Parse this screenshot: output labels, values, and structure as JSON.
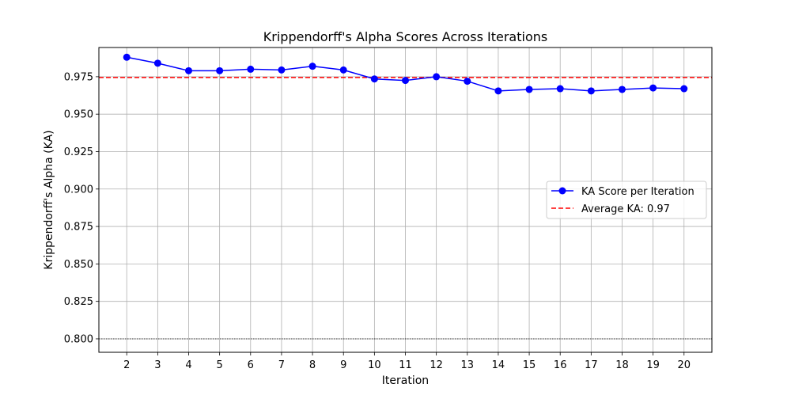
{
  "chart_data": {
    "type": "line",
    "title": "Krippendorff's Alpha Scores Across Iterations",
    "xlabel": "Iteration",
    "ylabel": "Krippendorff's Alpha (KA)",
    "xlim": [
      1.1,
      20.9
    ],
    "ylim": [
      0.791,
      0.9945
    ],
    "x": [
      2,
      3,
      4,
      5,
      6,
      7,
      8,
      9,
      10,
      11,
      12,
      13,
      14,
      15,
      16,
      17,
      18,
      19,
      20
    ],
    "series": [
      {
        "name": "KA Score per Iteration",
        "color": "#0000ff",
        "marker": "circle",
        "values": [
          0.988,
          0.984,
          0.979,
          0.979,
          0.98,
          0.9795,
          0.982,
          0.9795,
          0.9735,
          0.9725,
          0.975,
          0.972,
          0.9655,
          0.9665,
          0.967,
          0.9655,
          0.9665,
          0.9675,
          0.967
        ]
      }
    ],
    "reference_lines": [
      {
        "name": "Average KA: 0.97",
        "value": 0.9745,
        "color": "#ff0000",
        "style": "dashed"
      },
      {
        "name": "",
        "value": 0.8,
        "color": "#000000",
        "style": "dotted"
      }
    ],
    "x_ticks": [
      2,
      3,
      4,
      5,
      6,
      7,
      8,
      9,
      10,
      11,
      12,
      13,
      14,
      15,
      16,
      17,
      18,
      19,
      20
    ],
    "y_ticks": [
      0.8,
      0.825,
      0.85,
      0.875,
      0.9,
      0.925,
      0.95,
      0.975
    ],
    "y_tick_labels": [
      "0.800",
      "0.825",
      "0.850",
      "0.875",
      "0.900",
      "0.925",
      "0.950",
      "0.975"
    ],
    "grid": true,
    "grid_color": "#b0b0b0",
    "legend": {
      "placement": "center-right",
      "entries": [
        "KA Score per Iteration",
        "Average KA: 0.97"
      ]
    }
  }
}
